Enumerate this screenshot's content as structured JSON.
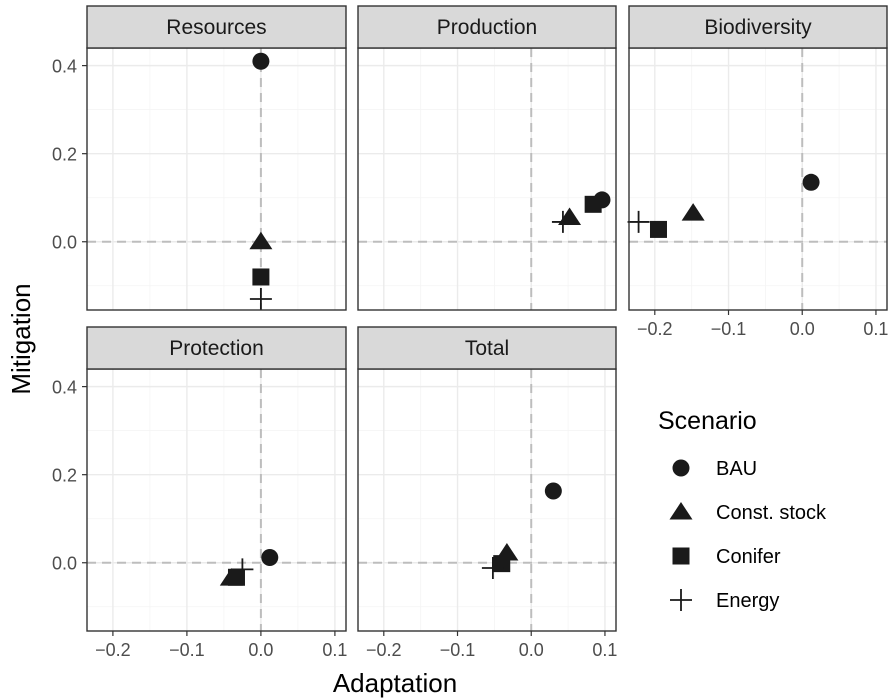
{
  "chart_data": {
    "type": "scatter",
    "facet_layout": "wrap, 3 columns, shared axes",
    "xlabel": "Adaptation",
    "ylabel": "Mitigation",
    "xlim": [
      -0.235,
      0.115
    ],
    "ylim": [
      -0.155,
      0.44
    ],
    "x_ticks": [
      -0.2,
      -0.1,
      0.0,
      0.1
    ],
    "x_tick_labels": [
      "−0.2",
      "−0.1",
      "0.0",
      "0.1"
    ],
    "y_ticks": [
      0.0,
      0.2,
      0.4
    ],
    "y_tick_labels": [
      "0.0",
      "0.2",
      "0.4"
    ],
    "grid": true,
    "reference_lines": {
      "x": 0,
      "y": 0,
      "style": "dashed"
    },
    "legend": {
      "title": "Scenario",
      "placement": "right",
      "entries": [
        {
          "label": "BAU",
          "shape": "circle"
        },
        {
          "label": "Const. stock",
          "shape": "triangle"
        },
        {
          "label": "Conifer",
          "shape": "square"
        },
        {
          "label": "Energy",
          "shape": "plus"
        }
      ]
    },
    "facets": [
      {
        "title": "Resources",
        "points": {
          "BAU": [
            0.0,
            0.41
          ],
          "Const. stock": [
            0.0,
            0.0
          ],
          "Conifer": [
            0.0,
            -0.08
          ],
          "Energy": [
            0.0,
            -0.13
          ]
        }
      },
      {
        "title": "Production",
        "points": {
          "BAU": [
            0.096,
            0.095
          ],
          "Const. stock": [
            0.052,
            0.055
          ],
          "Conifer": [
            0.084,
            0.085
          ],
          "Energy": [
            0.043,
            0.045
          ]
        }
      },
      {
        "title": "Biodiversity",
        "points": {
          "BAU": [
            0.012,
            0.135
          ],
          "Const. stock": [
            -0.148,
            0.065
          ],
          "Conifer": [
            -0.195,
            0.028
          ],
          "Energy": [
            -0.222,
            0.045
          ]
        }
      },
      {
        "title": "Protection",
        "points": {
          "BAU": [
            0.012,
            0.012
          ],
          "Const. stock": [
            -0.04,
            -0.035
          ],
          "Conifer": [
            -0.033,
            -0.033
          ],
          "Energy": [
            -0.025,
            -0.015
          ]
        }
      },
      {
        "title": "Total",
        "points": {
          "BAU": [
            0.03,
            0.163
          ],
          "Const. stock": [
            -0.033,
            0.022
          ],
          "Conifer": [
            -0.04,
            -0.002
          ],
          "Energy": [
            -0.052,
            -0.012
          ]
        }
      }
    ]
  },
  "colors": {
    "strip_fill": "#d9d9d9",
    "panel_border": "#333333",
    "grid_major": "#ebebeb",
    "grid_minor": "#f4f4f4",
    "reference_line": "#bdbdbd",
    "points": "#1a1a1a"
  }
}
